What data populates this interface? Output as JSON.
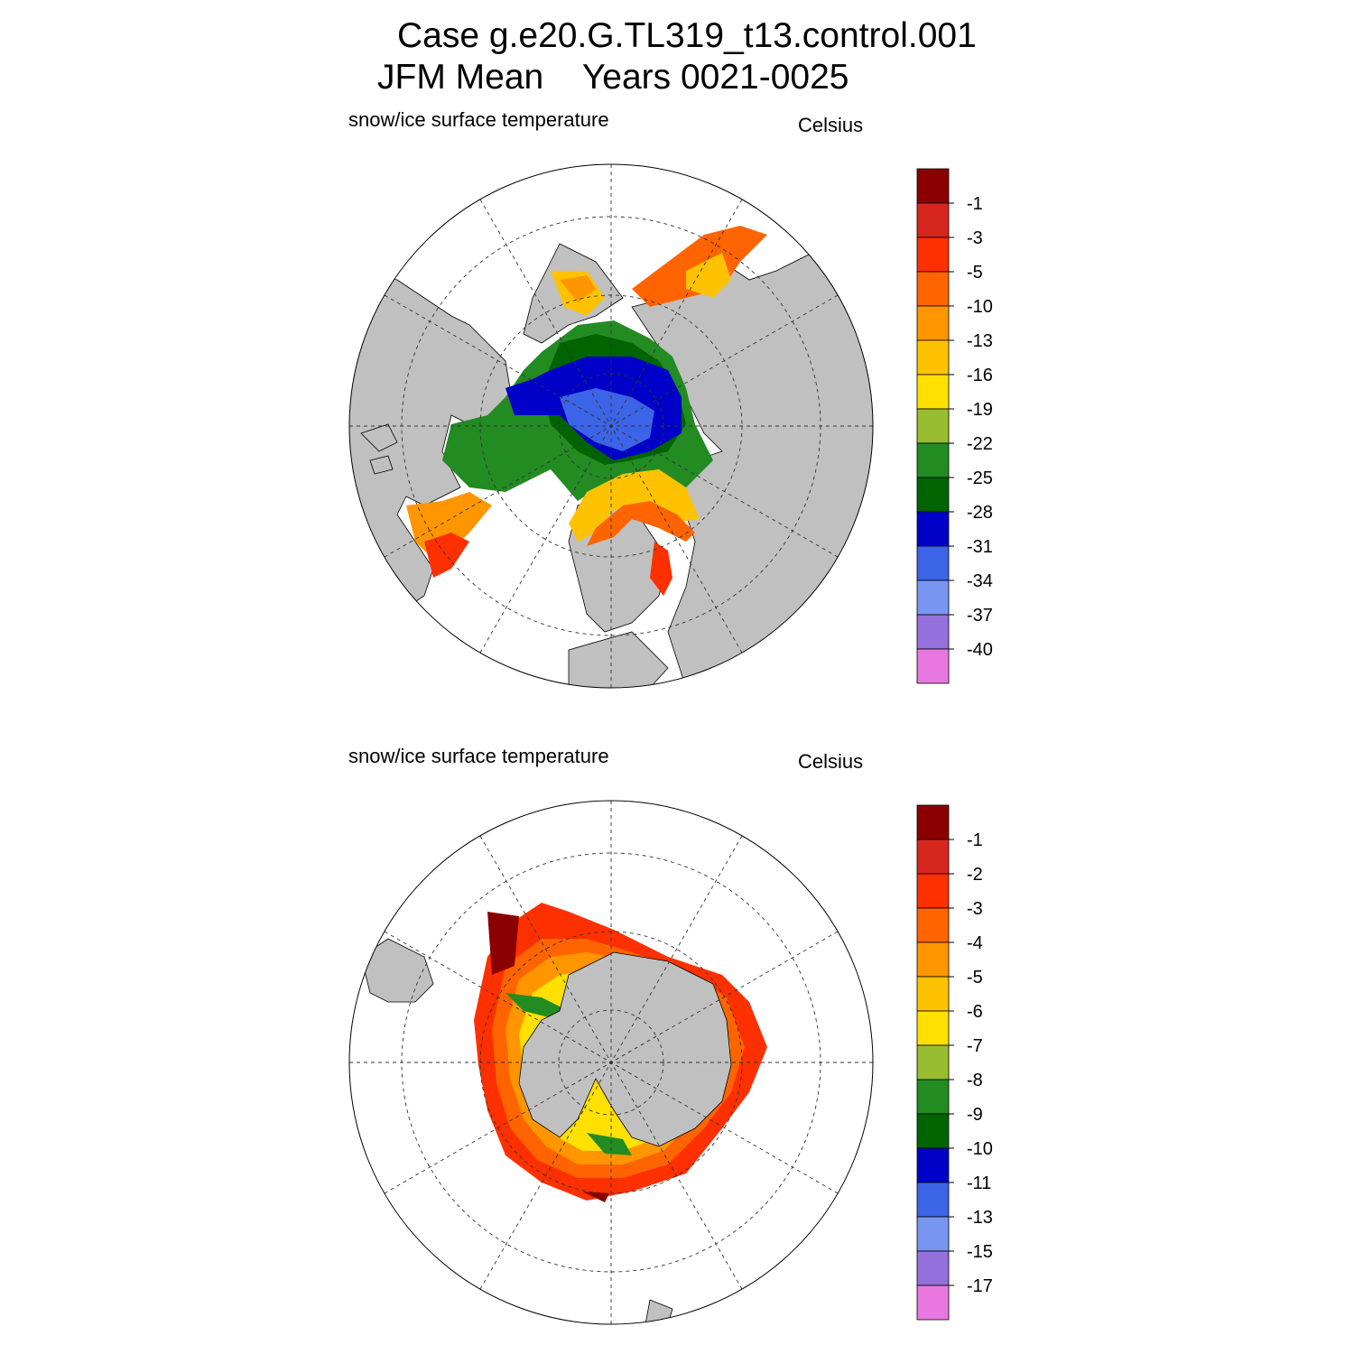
{
  "title": {
    "line1": "Case g.e20.G.TL319_t13.control.001",
    "line2_left": "JFM Mean",
    "line2_right": "Years 0021-0025"
  },
  "panels": [
    {
      "id": "north",
      "hemisphere": "Northern",
      "variable_label": "snow/ice surface temperature",
      "units": "Celsius",
      "colorbar": {
        "labels": [
          "-1",
          "-3",
          "-5",
          "-10",
          "-13",
          "-16",
          "-19",
          "-22",
          "-25",
          "-28",
          "-31",
          "-34",
          "-37",
          "-40"
        ],
        "colors": [
          "#8b0000",
          "#d7261e",
          "#ff3000",
          "#ff6400",
          "#ff9600",
          "#ffc200",
          "#ffe000",
          "#98bd30",
          "#228b22",
          "#006400",
          "#0000c8",
          "#3c64e6",
          "#7896f0",
          "#9370db",
          "#e878e0"
        ]
      }
    },
    {
      "id": "south",
      "hemisphere": "Southern",
      "variable_label": "snow/ice surface temperature",
      "units": "Celsius",
      "colorbar": {
        "labels": [
          "-1",
          "-2",
          "-3",
          "-4",
          "-5",
          "-6",
          "-7",
          "-8",
          "-9",
          "-10",
          "-11",
          "-13",
          "-15",
          "-17"
        ],
        "colors": [
          "#8b0000",
          "#d7261e",
          "#ff3000",
          "#ff6400",
          "#ff9600",
          "#ffc200",
          "#ffe000",
          "#98bd30",
          "#228b22",
          "#006400",
          "#0000c8",
          "#3c64e6",
          "#7896f0",
          "#9370db",
          "#e878e0"
        ]
      }
    }
  ],
  "map_style": {
    "land_color": "#c0c0c0",
    "ocean_color": "#ffffff",
    "grid_dash": "dashed"
  }
}
